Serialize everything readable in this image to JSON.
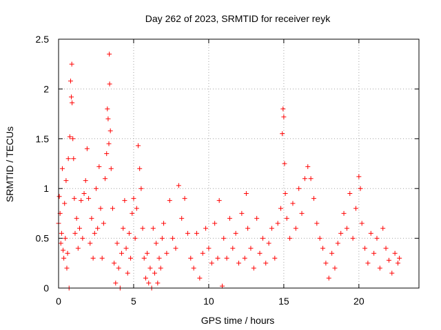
{
  "chart_data": {
    "type": "scatter",
    "title": "Day 262 of 2023, SRMTID for receiver reyk",
    "xlabel": "GPS time / hours",
    "ylabel": "SRMTID / TECUs",
    "xlim": [
      0,
      24
    ],
    "ylim": [
      0,
      2.5
    ],
    "grid": true,
    "marker": "+",
    "color": "#ff0000",
    "x_ticks": [
      "0",
      "5",
      "10",
      "15",
      "20"
    ],
    "x_tick_values": [
      0,
      5,
      10,
      15,
      20
    ],
    "y_ticks": [
      "0",
      "0.5",
      "1",
      "1.5",
      "2",
      "2.5"
    ],
    "y_tick_values": [
      0,
      0.5,
      1,
      1.5,
      2,
      2.5
    ],
    "series": [
      {
        "name": "SRMTID",
        "points": [
          [
            0.0,
            0.65
          ],
          [
            0.05,
            0.92
          ],
          [
            0.1,
            0.75
          ],
          [
            0.15,
            0.45
          ],
          [
            0.2,
            0.55
          ],
          [
            0.25,
            1.2
          ],
          [
            0.3,
            0.38
          ],
          [
            0.35,
            0.3
          ],
          [
            0.4,
            0.85
          ],
          [
            0.45,
            0.5
          ],
          [
            0.5,
            1.08
          ],
          [
            0.55,
            0.2
          ],
          [
            0.6,
            0.35
          ],
          [
            0.65,
            1.3
          ],
          [
            0.7,
            0.0
          ],
          [
            0.75,
            1.52
          ],
          [
            0.8,
            2.08
          ],
          [
            0.85,
            1.92
          ],
          [
            0.88,
            2.25
          ],
          [
            0.9,
            1.86
          ],
          [
            0.95,
            1.5
          ],
          [
            1.0,
            1.3
          ],
          [
            1.05,
            0.9
          ],
          [
            1.1,
            0.55
          ],
          [
            1.2,
            0.7
          ],
          [
            1.3,
            0.4
          ],
          [
            1.4,
            0.6
          ],
          [
            1.5,
            0.88
          ],
          [
            1.6,
            0.5
          ],
          [
            1.7,
            0.95
          ],
          [
            1.8,
            1.08
          ],
          [
            1.9,
            1.4
          ],
          [
            2.0,
            0.9
          ],
          [
            2.1,
            0.45
          ],
          [
            2.2,
            0.7
          ],
          [
            2.3,
            0.3
          ],
          [
            2.4,
            0.55
          ],
          [
            2.5,
            1.0
          ],
          [
            2.6,
            0.6
          ],
          [
            2.7,
            1.22
          ],
          [
            2.8,
            0.8
          ],
          [
            2.9,
            0.3
          ],
          [
            3.0,
            0.65
          ],
          [
            3.1,
            1.1
          ],
          [
            3.2,
            1.35
          ],
          [
            3.25,
            1.8
          ],
          [
            3.3,
            1.7
          ],
          [
            3.35,
            1.45
          ],
          [
            3.38,
            2.35
          ],
          [
            3.4,
            2.05
          ],
          [
            3.45,
            1.58
          ],
          [
            3.5,
            1.2
          ],
          [
            3.6,
            0.8
          ],
          [
            3.7,
            0.25
          ],
          [
            3.8,
            0.05
          ],
          [
            3.9,
            0.45
          ],
          [
            4.0,
            0.2
          ],
          [
            4.1,
            0.0
          ],
          [
            4.2,
            0.35
          ],
          [
            4.3,
            0.6
          ],
          [
            4.4,
            0.88
          ],
          [
            4.5,
            0.4
          ],
          [
            4.6,
            0.15
          ],
          [
            4.7,
            0.55
          ],
          [
            4.8,
            0.3
          ],
          [
            4.9,
            0.75
          ],
          [
            5.0,
            0.9
          ],
          [
            5.1,
            0.5
          ],
          [
            5.2,
            0.8
          ],
          [
            5.3,
            1.43
          ],
          [
            5.4,
            1.2
          ],
          [
            5.5,
            1.0
          ],
          [
            5.6,
            0.6
          ],
          [
            5.7,
            0.3
          ],
          [
            5.8,
            0.1
          ],
          [
            5.9,
            0.35
          ],
          [
            6.0,
            0.05
          ],
          [
            6.1,
            0.2
          ],
          [
            6.2,
            0.0
          ],
          [
            6.3,
            0.6
          ],
          [
            6.4,
            0.15
          ],
          [
            6.5,
            0.45
          ],
          [
            6.6,
            0.05
          ],
          [
            6.7,
            0.3
          ],
          [
            6.8,
            0.2
          ],
          [
            6.9,
            0.5
          ],
          [
            7.0,
            0.65
          ],
          [
            7.2,
            0.35
          ],
          [
            7.4,
            0.88
          ],
          [
            7.6,
            0.5
          ],
          [
            7.8,
            0.4
          ],
          [
            8.0,
            1.03
          ],
          [
            8.2,
            0.7
          ],
          [
            8.4,
            0.9
          ],
          [
            8.6,
            0.55
          ],
          [
            8.8,
            0.3
          ],
          [
            9.0,
            0.2
          ],
          [
            9.2,
            0.55
          ],
          [
            9.4,
            0.1
          ],
          [
            9.6,
            0.35
          ],
          [
            9.8,
            0.6
          ],
          [
            10.0,
            0.4
          ],
          [
            10.2,
            0.25
          ],
          [
            10.4,
            0.65
          ],
          [
            10.6,
            0.3
          ],
          [
            10.7,
            0.88
          ],
          [
            10.9,
            0.02
          ],
          [
            11.0,
            0.5
          ],
          [
            11.2,
            0.3
          ],
          [
            11.4,
            0.7
          ],
          [
            11.6,
            0.4
          ],
          [
            11.8,
            0.55
          ],
          [
            12.0,
            0.25
          ],
          [
            12.2,
            0.75
          ],
          [
            12.4,
            0.3
          ],
          [
            12.5,
            0.95
          ],
          [
            12.6,
            0.6
          ],
          [
            12.8,
            0.4
          ],
          [
            13.0,
            0.2
          ],
          [
            13.2,
            0.7
          ],
          [
            13.4,
            0.35
          ],
          [
            13.6,
            0.5
          ],
          [
            13.8,
            0.25
          ],
          [
            14.0,
            0.45
          ],
          [
            14.2,
            0.6
          ],
          [
            14.4,
            0.3
          ],
          [
            14.6,
            0.65
          ],
          [
            14.8,
            0.8
          ],
          [
            14.9,
            1.55
          ],
          [
            14.95,
            1.8
          ],
          [
            15.0,
            1.72
          ],
          [
            15.05,
            1.25
          ],
          [
            15.1,
            0.95
          ],
          [
            15.2,
            0.7
          ],
          [
            15.4,
            0.5
          ],
          [
            15.6,
            0.85
          ],
          [
            15.8,
            0.6
          ],
          [
            16.0,
            1.0
          ],
          [
            16.2,
            0.75
          ],
          [
            16.4,
            1.1
          ],
          [
            16.6,
            1.22
          ],
          [
            16.8,
            1.1
          ],
          [
            17.0,
            0.9
          ],
          [
            17.2,
            0.65
          ],
          [
            17.4,
            0.5
          ],
          [
            17.6,
            0.4
          ],
          [
            17.8,
            0.25
          ],
          [
            18.0,
            0.1
          ],
          [
            18.2,
            0.35
          ],
          [
            18.4,
            0.2
          ],
          [
            18.6,
            0.45
          ],
          [
            18.8,
            0.55
          ],
          [
            19.0,
            0.75
          ],
          [
            19.2,
            0.6
          ],
          [
            19.4,
            0.95
          ],
          [
            19.6,
            0.5
          ],
          [
            19.8,
            0.8
          ],
          [
            20.0,
            1.12
          ],
          [
            20.1,
            1.0
          ],
          [
            20.2,
            0.65
          ],
          [
            20.4,
            0.4
          ],
          [
            20.6,
            0.25
          ],
          [
            20.8,
            0.55
          ],
          [
            21.0,
            0.35
          ],
          [
            21.2,
            0.5
          ],
          [
            21.4,
            0.2
          ],
          [
            21.6,
            0.6
          ],
          [
            21.8,
            0.4
          ],
          [
            22.0,
            0.28
          ],
          [
            22.2,
            0.15
          ],
          [
            22.4,
            0.35
          ],
          [
            22.6,
            0.25
          ],
          [
            22.7,
            0.3
          ]
        ]
      }
    ]
  }
}
